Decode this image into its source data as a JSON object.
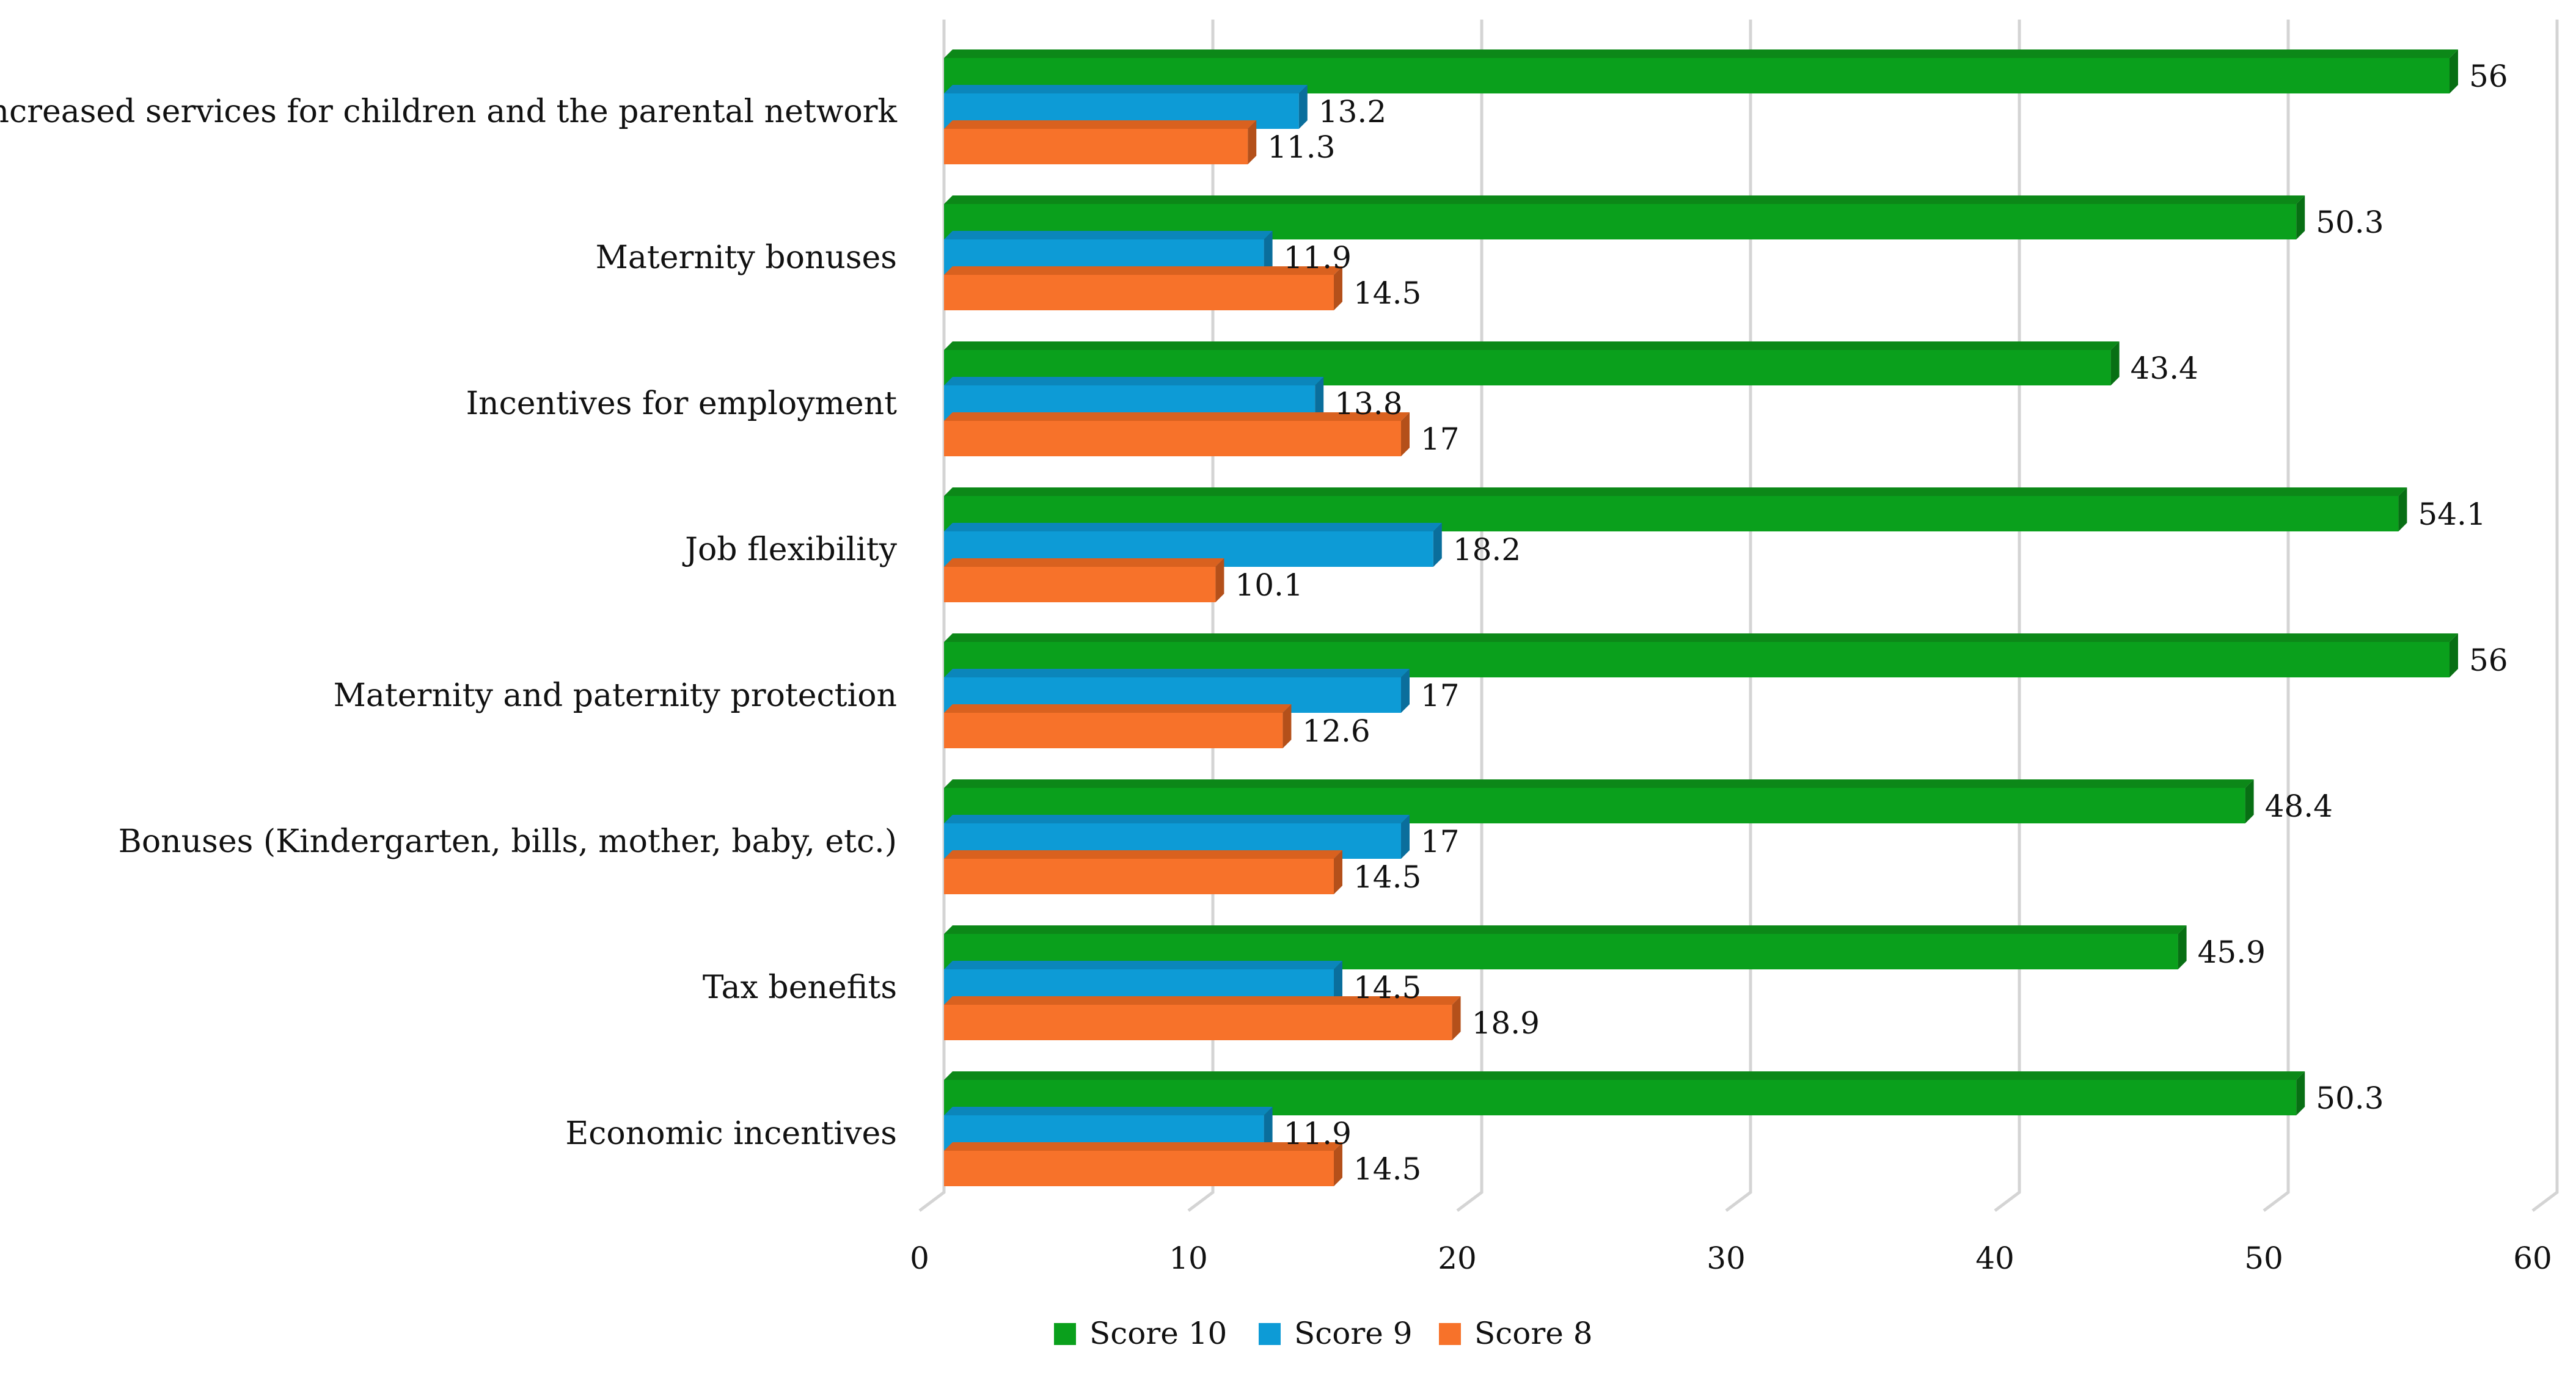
{
  "chart_data": {
    "type": "bar",
    "orientation": "horizontal",
    "title": "",
    "xlabel": "",
    "ylabel": "",
    "xlim": [
      0,
      60
    ],
    "xticks": [
      0,
      10,
      20,
      30,
      40,
      50,
      60
    ],
    "grid": true,
    "legend_position": "bottom",
    "categories": [
      "Increased services for children and the parental network",
      "Maternity bonuses",
      "Incentives for employment",
      "Job flexibility",
      "Maternity and paternity protection",
      "Bonuses (Kindergarten, bills, mother, baby, etc.)",
      "Tax benefits",
      "Economic incentives"
    ],
    "series": [
      {
        "name": "Score 10",
        "color": "#0aa01c",
        "side": "#086f14",
        "top": "#0c8818",
        "values": [
          56,
          50.3,
          43.4,
          54.1,
          56,
          48.4,
          45.9,
          50.3
        ],
        "labels": [
          "56",
          "50.3",
          "43.4",
          "54.1",
          "56",
          "48.4",
          "45.9",
          "50.3"
        ]
      },
      {
        "name": "Score 9",
        "color": "#0d9bd6",
        "side": "#0a6e9c",
        "top": "#0b86bb",
        "values": [
          13.2,
          11.9,
          13.8,
          18.2,
          17,
          17,
          14.5,
          11.9
        ],
        "labels": [
          "13.2",
          "11.9",
          "13.8",
          "18.2",
          "17",
          "17",
          "14.5",
          "11.9"
        ]
      },
      {
        "name": "Score 8",
        "color": "#f7722a",
        "side": "#b4501a",
        "top": "#d9611f",
        "values": [
          11.3,
          14.5,
          17,
          10.1,
          12.6,
          14.5,
          18.9,
          14.5
        ],
        "labels": [
          "11.3",
          "14.5",
          "17",
          "10.1",
          "12.6",
          "14.5",
          "18.9",
          "14.5"
        ]
      }
    ]
  }
}
